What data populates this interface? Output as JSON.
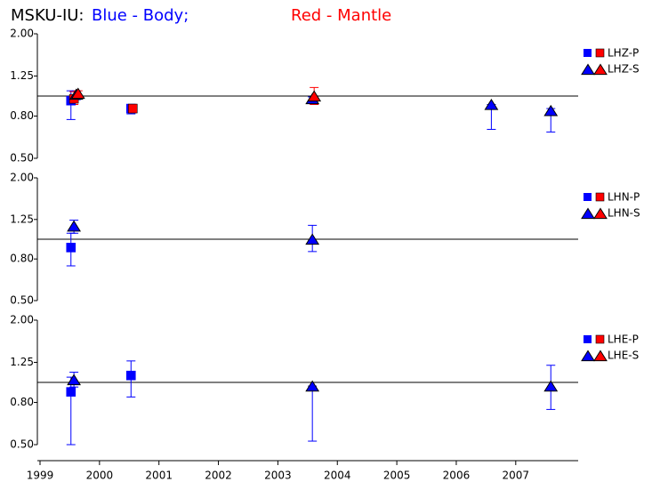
{
  "title": {
    "station": "MSKU-IU:",
    "body": "Blue - Body;",
    "mantle": "Red - Mantle"
  },
  "chart_data": [
    {
      "type": "scatter",
      "log_y": true,
      "reference": 1,
      "legend": [
        "LHZ-P",
        "LHZ-S"
      ],
      "xlim": [
        1999,
        2008.05
      ],
      "ylim": [
        0.5,
        2
      ],
      "yticks": [
        {
          "value": 0.5,
          "label": "0.50"
        },
        {
          "value": 0.8,
          "label": "0.80"
        },
        1.25,
        {
          "value": 2,
          "label": "2.00"
        }
      ],
      "series": [
        {
          "marker": "square",
          "color": "#0000ff",
          "x": [
            1999.52,
            2000.53
          ],
          "values": [
            0.95,
            0.87
          ],
          "lower": [
            0.77,
            0.82
          ],
          "upper": [
            1.06,
            0.9
          ]
        },
        {
          "marker": "square",
          "color": "#ff0000",
          "x": [
            1999.57,
            2000.56
          ],
          "values": [
            0.97,
            0.87
          ],
          "lower": [
            0.91,
            0.85
          ],
          "upper": [
            1.05,
            0.89
          ]
        },
        {
          "marker": "triangle",
          "color": "#0000ff",
          "x": [
            1999.61,
            2003.58,
            2006.59,
            2007.59
          ],
          "values": [
            1.02,
            0.97,
            0.91,
            0.85
          ],
          "lower": [
            0.96,
            0.95,
            0.69,
            0.67
          ],
          "upper": [
            1.06,
            0.99,
            0.91,
            0.87
          ]
        },
        {
          "marker": "triangle",
          "color": "#ff0000",
          "x": [
            1999.64,
            2003.61
          ],
          "values": [
            1.03,
            1.0
          ],
          "lower": [
            0.98,
            0.91
          ],
          "upper": [
            1.06,
            1.1
          ]
        }
      ]
    },
    {
      "type": "scatter",
      "log_y": true,
      "reference": 1,
      "legend": [
        "LHN-P",
        "LHN-S"
      ],
      "xlim": [
        1999,
        2008.05
      ],
      "ylim": [
        0.5,
        2
      ],
      "yticks": [
        {
          "value": 0.5,
          "label": "0.50"
        },
        {
          "value": 0.8,
          "label": "0.80"
        },
        1.25,
        {
          "value": 2,
          "label": "2.00"
        }
      ],
      "series": [
        {
          "marker": "square",
          "color": "#0000ff",
          "x": [
            1999.52
          ],
          "values": [
            0.91
          ],
          "lower": [
            0.74
          ],
          "upper": [
            1.07
          ]
        },
        {
          "marker": "triangle",
          "color": "#0000ff",
          "x": [
            1999.57,
            2003.58
          ],
          "values": [
            1.16,
            1.0
          ],
          "lower": [
            1.07,
            0.87
          ],
          "upper": [
            1.24,
            1.17
          ]
        }
      ]
    },
    {
      "type": "scatter",
      "log_y": true,
      "reference": 1,
      "legend": [
        "LHE-P",
        "LHE-S"
      ],
      "xlim": [
        1999,
        2008.05
      ],
      "ylim": [
        0.5,
        2
      ],
      "yticks": [
        {
          "value": 0.5,
          "label": "0.50"
        },
        {
          "value": 0.8,
          "label": "0.80"
        },
        1.25,
        {
          "value": 2,
          "label": "2.00"
        }
      ],
      "xticks": [
        1999,
        2000,
        2001,
        2002,
        2003,
        2004,
        2005,
        2006,
        2007
      ],
      "series": [
        {
          "marker": "square",
          "color": "#0000ff",
          "x": [
            1999.52,
            2000.53
          ],
          "values": [
            0.9,
            1.08
          ],
          "lower": [
            0.5,
            0.85
          ],
          "upper": [
            1.06,
            1.27
          ]
        },
        {
          "marker": "triangle",
          "color": "#0000ff",
          "x": [
            1999.57,
            2003.58,
            2007.59
          ],
          "values": [
            1.03,
            0.96,
            0.96
          ],
          "lower": [
            0.95,
            0.52,
            0.74
          ],
          "upper": [
            1.12,
            0.96,
            1.21
          ]
        }
      ]
    }
  ]
}
